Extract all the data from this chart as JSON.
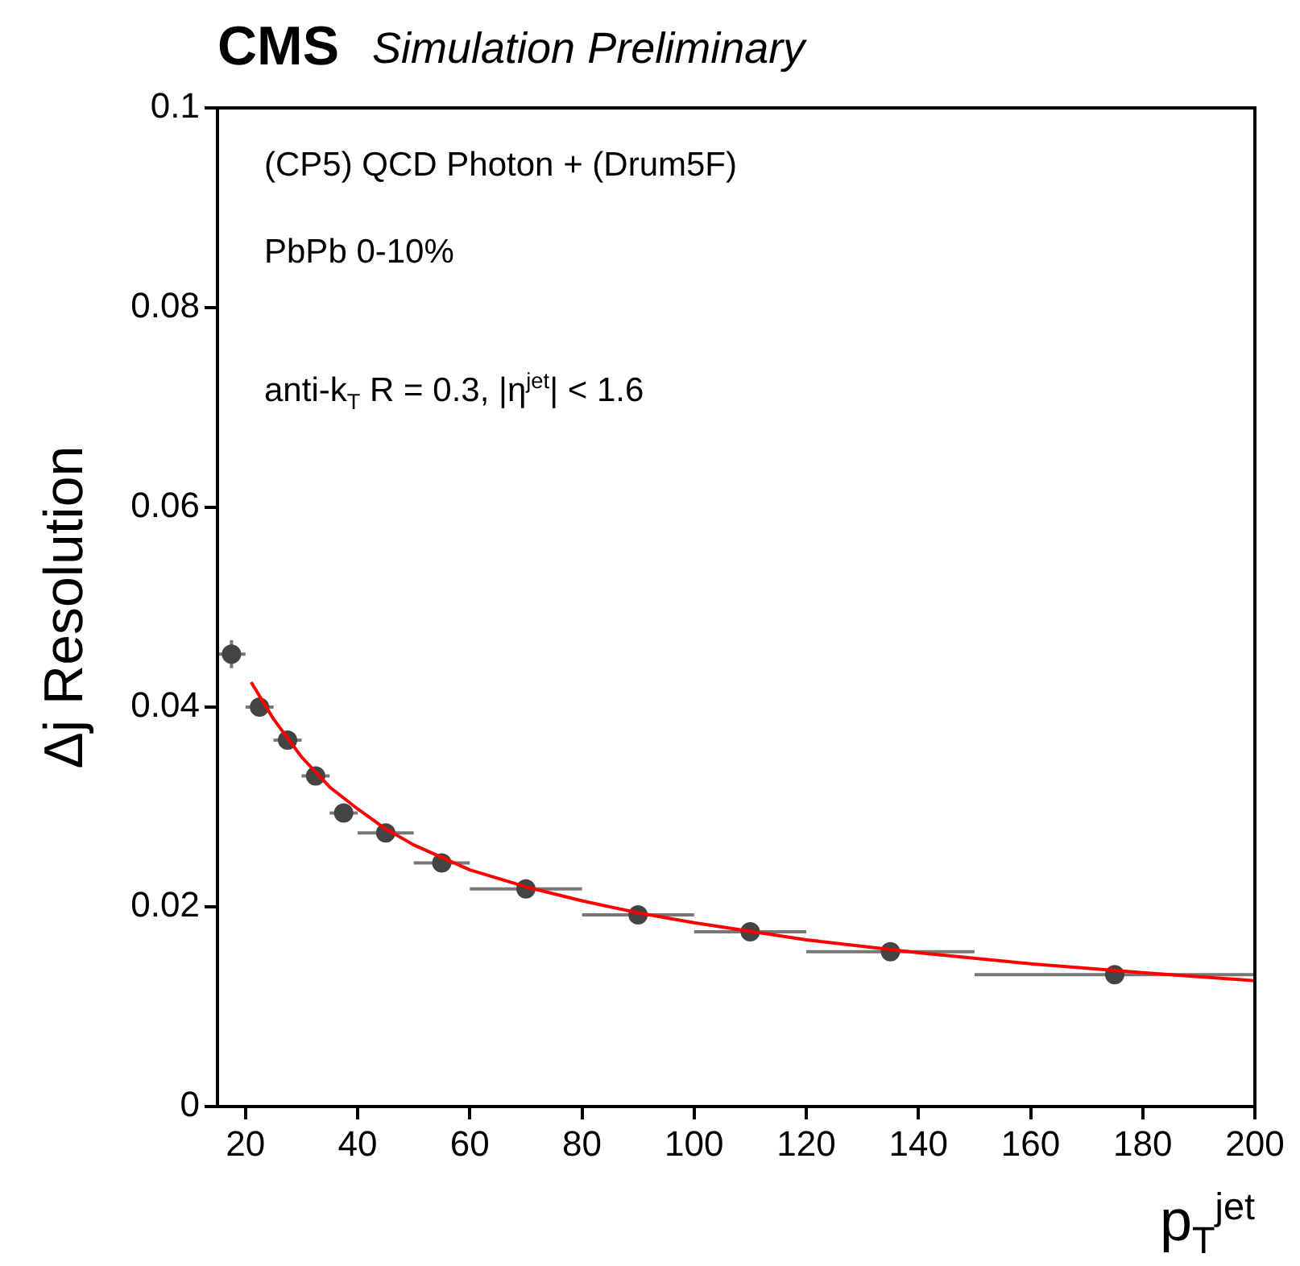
{
  "chart_data": {
    "type": "scatter",
    "title": "CMS",
    "subtitle": "Simulation Preliminary",
    "xlabel": "p$_{T}$$^{jet}$",
    "ylabel": "Δj Resolution",
    "annotations": [
      "(CP5) QCD Photon + (Drum5F)",
      "PbPb 0-10%",
      "anti-k$_{T}$ R = 0.3, |η$^{jet}$| < 1.6"
    ],
    "xlim": [
      15,
      200
    ],
    "ylim": [
      0,
      0.1
    ],
    "xticks": [
      20,
      40,
      60,
      80,
      100,
      120,
      140,
      160,
      180,
      200
    ],
    "yticks": [
      0,
      0.02,
      0.04,
      0.06,
      0.08,
      0.1
    ],
    "series": [
      {
        "marker": "circle",
        "color": "#444444",
        "x": [
          17.5,
          22.5,
          27.5,
          32.5,
          37.5,
          45,
          55,
          70,
          90,
          110,
          135,
          175
        ],
        "values": [
          0.0453,
          0.04,
          0.0367,
          0.0331,
          0.0294,
          0.0274,
          0.0244,
          0.0218,
          0.0192,
          0.0175,
          0.0155,
          0.0132
        ],
        "errors": [
          0.0014,
          0.0006,
          null,
          null,
          null,
          null,
          null,
          null,
          null,
          null,
          null,
          null
        ],
        "xerrors": [
          2.5,
          2.5,
          2.5,
          2.5,
          2.5,
          5,
          5,
          10,
          10,
          10,
          15,
          25
        ]
      },
      {
        "type": "line",
        "marker": "none",
        "color": "#ff0000",
        "x": [
          21,
          25,
          30,
          35,
          40,
          45,
          50,
          60,
          70,
          80,
          90,
          100,
          120,
          140,
          160,
          180,
          200
        ],
        "values": [
          0.0425,
          0.0388,
          0.035,
          0.032,
          0.0298,
          0.0278,
          0.0262,
          0.0237,
          0.022,
          0.0206,
          0.0194,
          0.0184,
          0.0167,
          0.0154,
          0.0143,
          0.0134,
          0.0126
        ]
      }
    ]
  }
}
